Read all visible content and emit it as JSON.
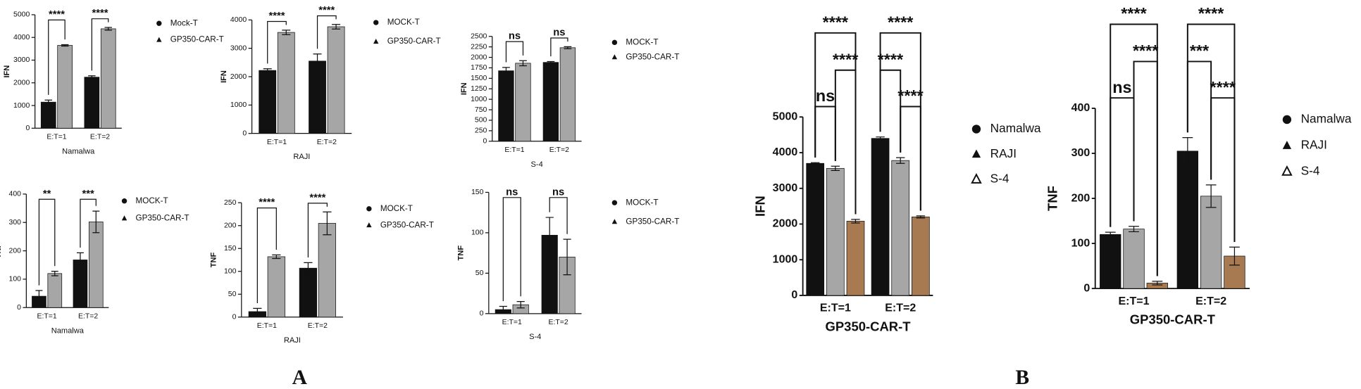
{
  "panel_labels": [
    "A",
    "B"
  ],
  "chart_data": [
    {
      "type": "bar",
      "ylabel": "IFN",
      "xlabel": "Namalwa",
      "categories": [
        "E:T=1",
        "E:T=2"
      ],
      "ylim": [
        0,
        5000
      ],
      "yticks": [
        0,
        1000,
        2000,
        3000,
        4000,
        5000
      ],
      "series": [
        {
          "name": "Mock-T",
          "color": "#111111",
          "marker": "circle",
          "values": [
            1150,
            2250
          ],
          "errors": [
            90,
            60
          ]
        },
        {
          "name": "GP350-CAR-T",
          "color": "#a6a6a6",
          "marker": "triangle",
          "values": [
            3650,
            4380
          ],
          "errors": [
            30,
            60
          ]
        }
      ],
      "annotations": [
        "****",
        "****"
      ]
    },
    {
      "type": "bar",
      "ylabel": "IFN",
      "xlabel": "RAJI",
      "categories": [
        "E:T=1",
        "E:T=2"
      ],
      "ylim": [
        0,
        4000
      ],
      "yticks": [
        0,
        1000,
        2000,
        3000,
        4000
      ],
      "series": [
        {
          "name": "MOCK-T",
          "color": "#111111",
          "marker": "circle",
          "values": [
            2220,
            2550
          ],
          "errors": [
            60,
            250
          ]
        },
        {
          "name": "GP350-CAR-T",
          "color": "#a6a6a6",
          "marker": "triangle",
          "values": [
            3560,
            3760
          ],
          "errors": [
            80,
            80
          ]
        }
      ],
      "annotations": [
        "****",
        "****"
      ]
    },
    {
      "type": "bar",
      "ylabel": "IFN",
      "xlabel": "S-4",
      "categories": [
        "E:T=1",
        "E:T=2"
      ],
      "ylim": [
        0,
        2500
      ],
      "yticks": [
        0,
        250,
        500,
        750,
        1000,
        1250,
        1500,
        1750,
        2000,
        2250,
        2500
      ],
      "series": [
        {
          "name": "MOCK-T",
          "color": "#111111",
          "marker": "circle",
          "values": [
            1680,
            1880
          ],
          "errors": [
            80,
            20
          ]
        },
        {
          "name": "GP350-CAR-T",
          "color": "#a6a6a6",
          "marker": "triangle",
          "values": [
            1860,
            2230
          ],
          "errors": [
            60,
            25
          ]
        }
      ],
      "annotations": [
        "ns",
        "ns"
      ]
    },
    {
      "type": "bar",
      "ylabel": "TNF",
      "xlabel": "Namalwa",
      "categories": [
        "E:T=1",
        "E:T=2"
      ],
      "ylim": [
        0,
        400
      ],
      "yticks": [
        0,
        100,
        200,
        300,
        400
      ],
      "series": [
        {
          "name": "MOCK-T",
          "color": "#111111",
          "marker": "circle",
          "values": [
            40,
            168
          ],
          "errors": [
            20,
            25
          ]
        },
        {
          "name": "GP350-CAR-T",
          "color": "#a6a6a6",
          "marker": "triangle",
          "values": [
            120,
            302
          ],
          "errors": [
            8,
            38
          ]
        }
      ],
      "annotations": [
        "**",
        "***"
      ]
    },
    {
      "type": "bar",
      "ylabel": "TNF",
      "xlabel": "RAJI",
      "categories": [
        "E:T=1",
        "E:T=2"
      ],
      "ylim": [
        0,
        250
      ],
      "yticks": [
        0,
        50,
        100,
        150,
        200,
        250
      ],
      "series": [
        {
          "name": "MOCK-T",
          "color": "#111111",
          "marker": "circle",
          "values": [
            12,
            107
          ],
          "errors": [
            7,
            12
          ]
        },
        {
          "name": "GP350-CAR-T",
          "color": "#a6a6a6",
          "marker": "triangle",
          "values": [
            132,
            205
          ],
          "errors": [
            4,
            25
          ]
        }
      ],
      "annotations": [
        "****",
        "****"
      ]
    },
    {
      "type": "bar",
      "ylabel": "TNF",
      "xlabel": "S-4",
      "categories": [
        "E:T=1",
        "E:T=2"
      ],
      "ylim": [
        0,
        150
      ],
      "yticks": [
        0,
        50,
        100,
        150
      ],
      "series": [
        {
          "name": "MOCK-T",
          "color": "#111111",
          "marker": "circle",
          "values": [
            5,
            97
          ],
          "errors": [
            4,
            22
          ]
        },
        {
          "name": "GP350-CAR-T",
          "color": "#a6a6a6",
          "marker": "triangle",
          "values": [
            11,
            70
          ],
          "errors": [
            4,
            22
          ]
        }
      ],
      "annotations": [
        "ns",
        "ns"
      ]
    },
    {
      "type": "bar",
      "ylabel": "IFN",
      "xlabel": "GP350-CAR-T",
      "categories": [
        "E:T=1",
        "E:T=2"
      ],
      "ylim": [
        0,
        5000
      ],
      "yticks": [
        0,
        1000,
        2000,
        3000,
        4000,
        5000
      ],
      "series": [
        {
          "name": "Namalwa",
          "color": "#111111",
          "marker": "circle",
          "values": [
            3700,
            4400
          ],
          "errors": [
            20,
            40
          ]
        },
        {
          "name": "RAJI",
          "color": "#a6a6a6",
          "marker": "triangle",
          "values": [
            3560,
            3780
          ],
          "errors": [
            60,
            80
          ]
        },
        {
          "name": "S-4",
          "color": "#a87a52",
          "marker": "open-triangle",
          "values": [
            2080,
            2200
          ],
          "errors": [
            50,
            30
          ]
        }
      ],
      "annotations": [
        [
          "****",
          "****",
          "ns"
        ],
        [
          "****",
          "****",
          "****"
        ]
      ]
    },
    {
      "type": "bar",
      "ylabel": "TNF",
      "xlabel": "GP350-CAR-T",
      "categories": [
        "E:T=1",
        "E:T=2"
      ],
      "ylim": [
        0,
        400
      ],
      "yticks": [
        0,
        100,
        200,
        300,
        400
      ],
      "series": [
        {
          "name": "Namalwa",
          "color": "#111111",
          "marker": "circle",
          "values": [
            120,
            305
          ],
          "errors": [
            5,
            30
          ]
        },
        {
          "name": "RAJI",
          "color": "#a6a6a6",
          "marker": "triangle",
          "values": [
            132,
            205
          ],
          "errors": [
            6,
            25
          ]
        },
        {
          "name": "S-4",
          "color": "#a87a52",
          "marker": "open-triangle",
          "values": [
            12,
            72
          ],
          "errors": [
            4,
            20
          ]
        }
      ],
      "annotations": [
        [
          "****",
          "****",
          "ns"
        ],
        [
          "****",
          "****",
          "***"
        ]
      ]
    }
  ]
}
